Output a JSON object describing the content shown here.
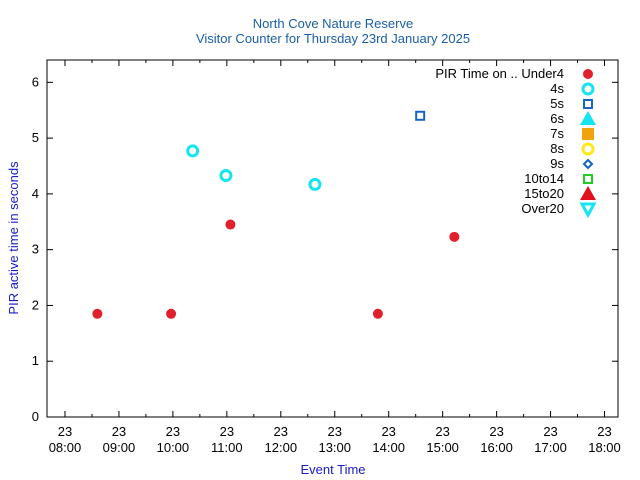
{
  "chart_data": {
    "type": "scatter",
    "title": "North Cove Nature Reserve",
    "subtitle": "Visitor Counter for Thursday 23rd January 2025",
    "xlabel": "Event Time",
    "ylabel": "PIR active time in seconds",
    "xlim": [
      "2025-01-23 07:40",
      "2025-01-23 18:15"
    ],
    "ylim": [
      0,
      6.4
    ],
    "y_ticks": [
      "0",
      "1",
      "2",
      "3",
      "4",
      "5",
      "6"
    ],
    "x_ticks": [
      {
        "day": "23",
        "time": "08:00"
      },
      {
        "day": "23",
        "time": "09:00"
      },
      {
        "day": "23",
        "time": "10:00"
      },
      {
        "day": "23",
        "time": "11:00"
      },
      {
        "day": "23",
        "time": "12:00"
      },
      {
        "day": "23",
        "time": "13:00"
      },
      {
        "day": "23",
        "time": "14:00"
      },
      {
        "day": "23",
        "time": "15:00"
      },
      {
        "day": "23",
        "time": "16:00"
      },
      {
        "day": "23",
        "time": "17:00"
      },
      {
        "day": "23",
        "time": "18:00"
      }
    ],
    "legend_position": "top-right",
    "grid": false,
    "series": [
      {
        "name": "PIR Time on .. Under4",
        "marker": "filled-circle",
        "color": "#e0202c",
        "points": [
          {
            "x": "2025-01-23 08:36",
            "y": 1.85
          },
          {
            "x": "2025-01-23 09:58",
            "y": 1.85
          },
          {
            "x": "2025-01-23 11:04",
            "y": 3.45
          },
          {
            "x": "2025-01-23 13:48",
            "y": 1.85
          },
          {
            "x": "2025-01-23 15:13",
            "y": 3.23
          }
        ]
      },
      {
        "name": "4s",
        "marker": "open-circle",
        "color": "#16e4f0",
        "points": [
          {
            "x": "2025-01-23 10:22",
            "y": 4.77
          },
          {
            "x": "2025-01-23 10:59",
            "y": 4.33
          },
          {
            "x": "2025-01-23 12:38",
            "y": 4.17
          }
        ]
      },
      {
        "name": "5s",
        "marker": "open-square",
        "color": "#1565c0",
        "points": [
          {
            "x": "2025-01-23 14:35",
            "y": 5.4
          }
        ]
      },
      {
        "name": "6s",
        "marker": "filled-triangle",
        "color": "#16e4f0",
        "points": []
      },
      {
        "name": "7s",
        "marker": "filled-square",
        "color": "#f0a30a",
        "points": []
      },
      {
        "name": "8s",
        "marker": "open-circle",
        "color": "#ffe81a",
        "points": []
      },
      {
        "name": "9s",
        "marker": "open-diamond",
        "color": "#1565c0",
        "points": []
      },
      {
        "name": "10to14",
        "marker": "open-square",
        "color": "#22cc22",
        "points": []
      },
      {
        "name": "15to20",
        "marker": "filled-triangle",
        "color": "#e0101c",
        "points": []
      },
      {
        "name": "Over20",
        "marker": "open-triangle-down",
        "color": "#16e4f0",
        "points": []
      }
    ]
  }
}
